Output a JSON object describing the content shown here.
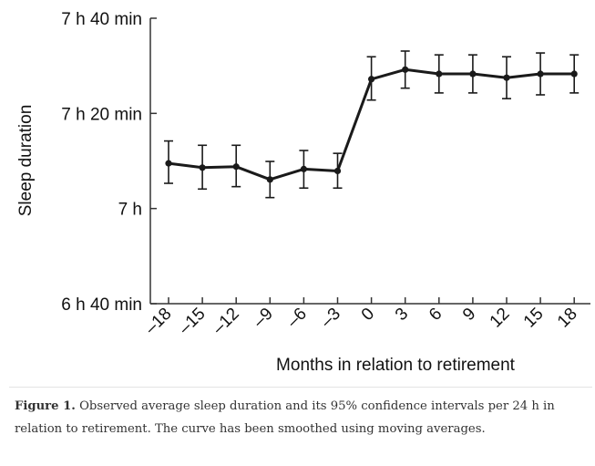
{
  "chart_data": {
    "type": "line",
    "title": "",
    "xlabel": "Months in relation to retirement",
    "ylabel": "Sleep duration",
    "x": [
      -18,
      -15,
      -12,
      -9,
      -6,
      -3,
      0,
      3,
      6,
      9,
      12,
      15,
      18
    ],
    "x_tick_labels": [
      "–18",
      "–15",
      "–12",
      "–9",
      "–6",
      "–3",
      "0",
      "3",
      "6",
      "9",
      "12",
      "15",
      "18"
    ],
    "y_ticks": [
      400,
      420,
      440,
      460
    ],
    "y_tick_labels": [
      "6 h 40 min",
      "7 h",
      "7 h 20 min",
      "7 h 40 min"
    ],
    "ylim": [
      400,
      460
    ],
    "y_units": "minutes",
    "series": [
      {
        "name": "Observed average sleep duration",
        "values": [
          429.5,
          428.6,
          428.8,
          426.1,
          428.3,
          427.9,
          447.2,
          449.2,
          448.3,
          448.3,
          447.5,
          448.3,
          448.3
        ],
        "ci_lower": [
          425.3,
          424.1,
          424.6,
          422.3,
          424.3,
          424.3,
          442.8,
          445.3,
          444.3,
          444.3,
          443.1,
          443.9,
          444.3
        ],
        "ci_upper": [
          434.2,
          433.3,
          433.3,
          429.9,
          432.2,
          431.6,
          451.9,
          453.1,
          452.3,
          452.3,
          451.9,
          452.7,
          452.3
        ]
      }
    ],
    "grid": false,
    "legend": "none"
  },
  "caption": {
    "label": "Figure 1.",
    "text": " Observed average sleep duration and its 95% confidence intervals per 24 h in relation to retirement. The curve has been smoothed using moving averages."
  },
  "colors": {
    "line": "#1a1a1a",
    "axis": "#333333",
    "text": "#111111",
    "caption": "#333333"
  }
}
